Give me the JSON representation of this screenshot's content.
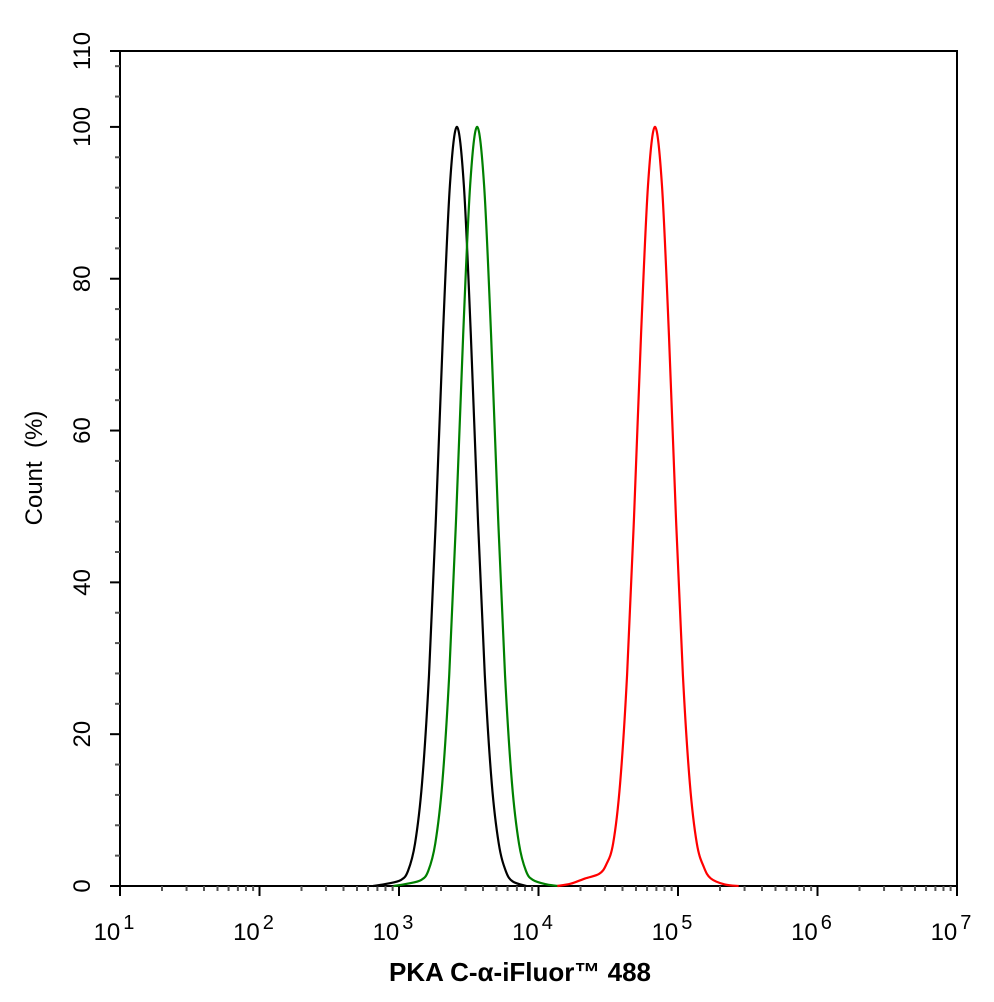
{
  "chart_data": {
    "type": "line",
    "title": "",
    "xlabel": "PKA C-α-iFluor™ 488",
    "ylabel": "Count  (%)",
    "xscale": "log",
    "xlim": [
      10,
      10000000
    ],
    "ylim": [
      0,
      110
    ],
    "grid": false,
    "legend": "none",
    "x_ticks": [
      10,
      100,
      1000,
      10000,
      100000,
      1000000,
      10000000
    ],
    "x_tick_labels": [
      {
        "base": "10",
        "exp": "1"
      },
      {
        "base": "10",
        "exp": "2"
      },
      {
        "base": "10",
        "exp": "3"
      },
      {
        "base": "10",
        "exp": "4"
      },
      {
        "base": "10",
        "exp": "5"
      },
      {
        "base": "10",
        "exp": "6"
      },
      {
        "base": "10",
        "exp": "7"
      }
    ],
    "y_ticks": [
      0,
      20,
      40,
      60,
      80,
      100,
      110
    ],
    "y_tick_labels": [
      "0",
      "20",
      "40",
      "60",
      "80",
      "100",
      "110"
    ],
    "series": [
      {
        "color": "#000000",
        "points": [
          [
            653,
            0
          ],
          [
            822,
            0.3
          ],
          [
            1035,
            0.8
          ],
          [
            1161,
            2.0
          ],
          [
            1303,
            5.6
          ],
          [
            1462,
            13.5
          ],
          [
            1641,
            27.8
          ],
          [
            1841,
            48.7
          ],
          [
            2065,
            72.6
          ],
          [
            2317,
            92.3
          ],
          [
            2600,
            100
          ],
          [
            2917,
            92.3
          ],
          [
            3273,
            72.6
          ],
          [
            3673,
            48.7
          ],
          [
            4121,
            27.8
          ],
          [
            4624,
            13.5
          ],
          [
            5188,
            5.6
          ],
          [
            5821,
            2.0
          ],
          [
            6531,
            0.6
          ],
          [
            8222,
            0
          ]
        ]
      },
      {
        "color": "#008000",
        "points": [
          [
            912,
            0
          ],
          [
            1148,
            0.3
          ],
          [
            1445,
            0.8
          ],
          [
            1622,
            2.0
          ],
          [
            1820,
            5.6
          ],
          [
            2042,
            13.5
          ],
          [
            2291,
            27.8
          ],
          [
            2570,
            48.7
          ],
          [
            2884,
            72.6
          ],
          [
            3236,
            92.3
          ],
          [
            3631,
            100
          ],
          [
            4074,
            92.3
          ],
          [
            4571,
            72.6
          ],
          [
            5129,
            48.7
          ],
          [
            5754,
            27.8
          ],
          [
            6457,
            13.5
          ],
          [
            7244,
            5.6
          ],
          [
            8128,
            2.0
          ],
          [
            9120,
            0.8
          ],
          [
            11482,
            0.2
          ],
          [
            14000,
            0
          ]
        ]
      },
      {
        "color": "#ff0000",
        "points": [
          [
            13646,
            0
          ],
          [
            17000,
            0.3
          ],
          [
            21627,
            1.0
          ],
          [
            27227,
            1.6
          ],
          [
            30549,
            2.8
          ],
          [
            34277,
            5.6
          ],
          [
            38459,
            13.5
          ],
          [
            43152,
            27.8
          ],
          [
            48417,
            48.7
          ],
          [
            54325,
            72.6
          ],
          [
            60954,
            92.3
          ],
          [
            68391,
            100
          ],
          [
            76736,
            92.3
          ],
          [
            86099,
            72.6
          ],
          [
            96605,
            48.7
          ],
          [
            108393,
            27.8
          ],
          [
            121619,
            13.5
          ],
          [
            136458,
            5.6
          ],
          [
            153109,
            2.5
          ],
          [
            171791,
            1.0
          ],
          [
            216272,
            0.2
          ],
          [
            272270,
            0
          ]
        ]
      }
    ]
  }
}
